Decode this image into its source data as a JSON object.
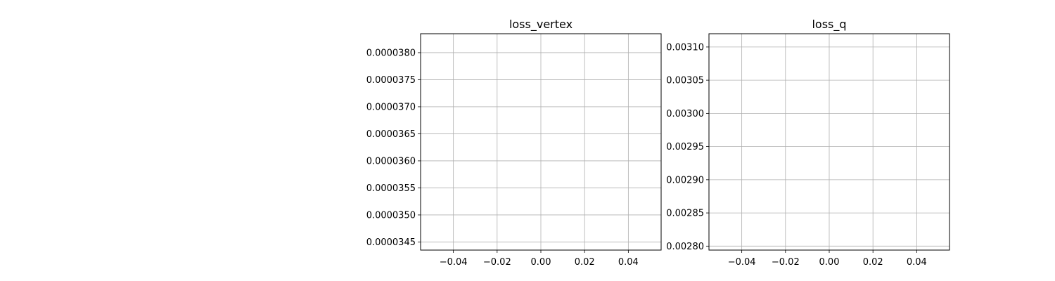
{
  "figure": {
    "background": "#ffffff",
    "grid_color": "#b0b0b0"
  },
  "chart_data": [
    {
      "type": "line",
      "title": "loss_vertex",
      "xlabel": "",
      "ylabel": "",
      "grid": true,
      "xlim": [
        -0.055,
        0.055
      ],
      "ylim": [
        3.435e-05,
        3.835e-05
      ],
      "x_ticks": [
        -0.04,
        -0.02,
        0.0,
        0.02,
        0.04
      ],
      "x_tick_labels": [
        "−0.04",
        "−0.02",
        "0.00",
        "0.02",
        "0.04"
      ],
      "y_ticks": [
        3.45e-05,
        3.5e-05,
        3.55e-05,
        3.6e-05,
        3.65e-05,
        3.7e-05,
        3.75e-05,
        3.8e-05
      ],
      "y_tick_labels": [
        "0.0000345",
        "0.0000350",
        "0.0000355",
        "0.0000360",
        "0.0000365",
        "0.0000370",
        "0.0000375",
        "0.0000380"
      ],
      "series": []
    },
    {
      "type": "line",
      "title": "loss_q",
      "xlabel": "",
      "ylabel": "",
      "grid": true,
      "xlim": [
        -0.055,
        0.055
      ],
      "ylim": [
        0.002794,
        0.00312
      ],
      "x_ticks": [
        -0.04,
        -0.02,
        0.0,
        0.02,
        0.04
      ],
      "x_tick_labels": [
        "−0.04",
        "−0.02",
        "0.00",
        "0.02",
        "0.04"
      ],
      "y_ticks": [
        0.0028,
        0.00285,
        0.0029,
        0.00295,
        0.003,
        0.00305,
        0.0031
      ],
      "y_tick_labels": [
        "0.00280",
        "0.00285",
        "0.00290",
        "0.00295",
        "0.00300",
        "0.00305",
        "0.00310"
      ],
      "series": []
    }
  ]
}
